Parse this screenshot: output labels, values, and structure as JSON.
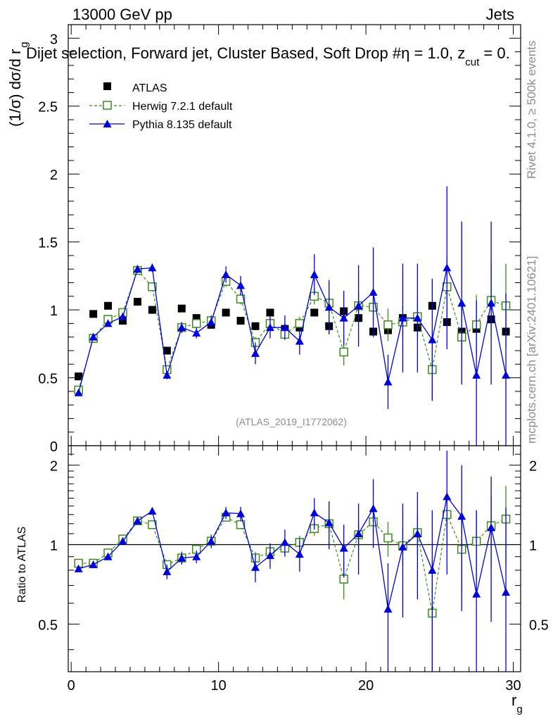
{
  "header": {
    "energy_label": "13000 GeV pp",
    "process_label": "Jets",
    "selection_prefix": "Dijet selection, Forward jet, Cluster Based, Soft Drop #",
    "selection_eta": "η",
    "selection_suffix": " = 1.0, z",
    "selection_sub": "cut",
    "selection_end": " = 0."
  },
  "side_labels": {
    "rivet": "Rivet 4.1.0, ≥ 500k events",
    "mcplots": "mcplots.cern.ch [arXiv:2401.10621]"
  },
  "watermark": "(ATLAS_2019_I1772062)",
  "legend": {
    "atlas": "ATLAS",
    "herwig": "Herwig 7.2.1 default",
    "pythia": "Pythia 8.135 default"
  },
  "colors": {
    "atlas": "#000000",
    "herwig": "#3b8c1a",
    "pythia": "#0000d8"
  },
  "chart_data": [
    {
      "type": "scatter",
      "title": "Dijet selection, Forward jet, Cluster Based, Soft Drop #η = 1.0, z_cut = 0.",
      "ylabel_main": "(1/σ) dσ/d r",
      "ylabel_sub": "g",
      "xlim": [
        -0.2,
        30.5
      ],
      "ylim": [
        0,
        3.1
      ],
      "yticks": [
        0,
        0.5,
        1,
        1.5,
        2,
        2.5,
        3
      ],
      "ytick_labels": [
        "0",
        "0.5",
        "1",
        "1.5",
        "2",
        "2.5",
        "3"
      ],
      "x": [
        0.5,
        1.5,
        2.5,
        3.5,
        4.5,
        5.5,
        6.5,
        7.5,
        8.5,
        9.5,
        10.5,
        11.5,
        12.5,
        13.5,
        14.5,
        15.5,
        16.5,
        17.5,
        18.5,
        19.5,
        20.5,
        21.5,
        22.5,
        23.5,
        24.5,
        25.5,
        26.5,
        27.5,
        28.5,
        29.5
      ],
      "series": [
        {
          "name": "ATLAS",
          "values": [
            0.51,
            0.97,
            1.03,
            0.92,
            1.06,
            1.0,
            0.7,
            1.01,
            0.94,
            0.89,
            0.98,
            0.92,
            0.88,
            0.98,
            0.86,
            0.87,
            0.98,
            0.88,
            0.99,
            0.94,
            0.84,
            0.85,
            0.94,
            0.87,
            1.03,
            0.91,
            0.84,
            0.86,
            0.93,
            0.84
          ],
          "errors": [
            0.02,
            0.02,
            0.02,
            0.02,
            0.02,
            0.02,
            0.02,
            0.02,
            0.02,
            0.02,
            0.02,
            0.02,
            0.02,
            0.02,
            0.02,
            0.02,
            0.02,
            0.02,
            0.02,
            0.02,
            0.02,
            0.02,
            0.02,
            0.02,
            0.02,
            0.02,
            0.02,
            0.02,
            0.02,
            0.02
          ]
        },
        {
          "name": "Herwig 7.2.1 default",
          "values": [
            0.41,
            0.79,
            0.93,
            0.98,
            1.29,
            1.17,
            0.56,
            0.87,
            0.9,
            0.92,
            1.21,
            1.08,
            0.76,
            0.9,
            0.82,
            0.9,
            1.1,
            1.05,
            0.69,
            1.03,
            1.02,
            0.89,
            0.91,
            0.95,
            0.56,
            1.17,
            0.8,
            0.89,
            1.07,
            1.03
          ],
          "errors": [
            0.01,
            0.02,
            0.02,
            0.02,
            0.03,
            0.03,
            0.02,
            0.03,
            0.03,
            0.03,
            0.04,
            0.04,
            0.04,
            0.04,
            0.04,
            0.05,
            0.06,
            0.06,
            0.1,
            0.1,
            0.1,
            0.12,
            0.12,
            0.15,
            0.22,
            0.22,
            0.22,
            0.22,
            0.28,
            0.31
          ]
        },
        {
          "name": "Pythia 8.135 default",
          "values": [
            0.39,
            0.8,
            0.9,
            0.95,
            1.3,
            1.31,
            0.52,
            0.87,
            0.83,
            0.91,
            1.26,
            1.18,
            0.68,
            0.87,
            0.87,
            0.77,
            1.26,
            1.02,
            0.94,
            1.03,
            1.13,
            0.47,
            0.94,
            0.94,
            0.78,
            1.31,
            1.05,
            0.52,
            1.05,
            0.52
          ],
          "errors": [
            0.01,
            0.02,
            0.02,
            0.02,
            0.03,
            0.03,
            0.03,
            0.04,
            0.04,
            0.05,
            0.06,
            0.07,
            0.08,
            0.08,
            0.09,
            0.1,
            0.15,
            0.2,
            0.2,
            0.3,
            0.33,
            0.2,
            0.4,
            0.4,
            0.45,
            0.6,
            0.6,
            0.55,
            0.6,
            0.6
          ]
        }
      ]
    },
    {
      "type": "scatter",
      "ylabel": "Ratio to ATLAS",
      "xlabel_main": "r",
      "xlabel_sub": "g",
      "xlim": [
        -0.2,
        30.5
      ],
      "ylim": [
        0.33,
        2.37
      ],
      "yticks": [
        0.5,
        1,
        2
      ],
      "ytick_labels": [
        "0.5",
        "1",
        "2"
      ],
      "xticks": [
        0,
        10,
        20,
        30
      ],
      "xtick_labels": [
        "0",
        "10",
        "20",
        "30"
      ],
      "reference_line": 1,
      "x": [
        0.5,
        1.5,
        2.5,
        3.5,
        4.5,
        5.5,
        6.5,
        7.5,
        8.5,
        9.5,
        10.5,
        11.5,
        12.5,
        13.5,
        14.5,
        15.5,
        16.5,
        17.5,
        18.5,
        19.5,
        20.5,
        21.5,
        22.5,
        23.5,
        24.5,
        25.5,
        26.5,
        27.5,
        28.5,
        29.5
      ],
      "series": [
        {
          "name": "Herwig 7.2.1 default",
          "values": [
            0.85,
            0.85,
            0.93,
            1.05,
            1.23,
            1.19,
            0.84,
            0.89,
            0.96,
            1.03,
            1.27,
            1.19,
            0.89,
            0.94,
            0.97,
            1.02,
            1.15,
            1.2,
            0.74,
            1.09,
            1.22,
            1.06,
            0.99,
            1.11,
            0.55,
            1.3,
            0.96,
            1.03,
            1.18,
            1.25
          ],
          "errors": [
            0.02,
            0.02,
            0.02,
            0.02,
            0.03,
            0.03,
            0.03,
            0.03,
            0.03,
            0.03,
            0.04,
            0.04,
            0.05,
            0.05,
            0.05,
            0.06,
            0.07,
            0.08,
            0.12,
            0.12,
            0.14,
            0.16,
            0.16,
            0.2,
            0.3,
            0.3,
            0.3,
            0.3,
            0.35,
            0.42
          ]
        },
        {
          "name": "Pythia 8.135 default",
          "values": [
            0.81,
            0.84,
            0.9,
            1.03,
            1.23,
            1.34,
            0.79,
            0.89,
            0.9,
            1.03,
            1.32,
            1.31,
            0.82,
            0.91,
            1.02,
            0.92,
            1.32,
            1.21,
            0.97,
            1.1,
            1.37,
            0.57,
            0.98,
            1.1,
            0.8,
            1.52,
            1.28,
            0.65,
            1.16,
            0.66
          ],
          "errors": [
            0.02,
            0.02,
            0.02,
            0.03,
            0.03,
            0.04,
            0.05,
            0.05,
            0.05,
            0.06,
            0.07,
            0.08,
            0.1,
            0.1,
            0.12,
            0.13,
            0.18,
            0.25,
            0.22,
            0.33,
            0.4,
            0.28,
            0.45,
            0.48,
            0.55,
            0.75,
            0.72,
            0.7,
            0.65,
            0.72
          ]
        }
      ]
    }
  ]
}
